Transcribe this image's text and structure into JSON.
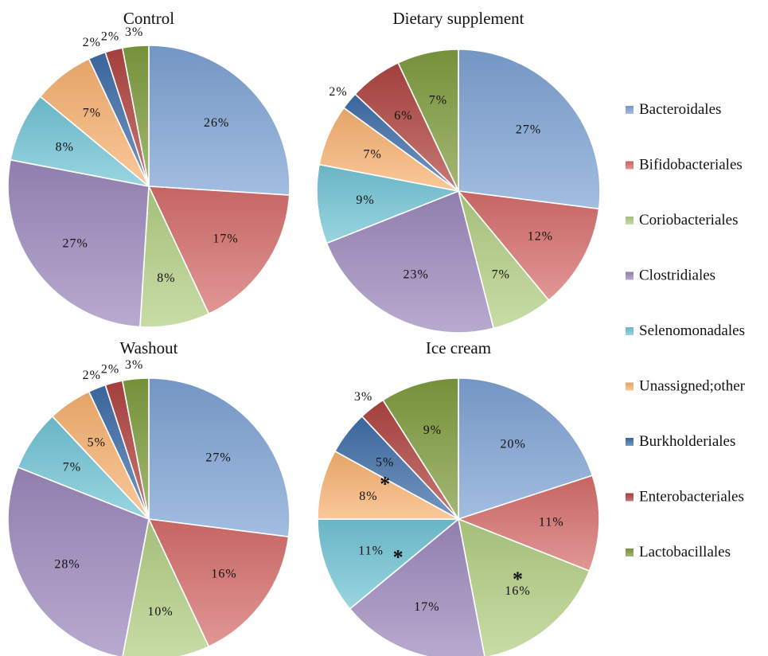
{
  "legend": [
    {
      "name": "Bacteroidales",
      "color": "#7ea3d4"
    },
    {
      "name": "Bifidobacteriales",
      "color": "#d66e6c"
    },
    {
      "name": "Coriobacteriales",
      "color": "#b3cf84"
    },
    {
      "name": "Clostridiales",
      "color": "#9d89bd"
    },
    {
      "name": "Selenomonadales",
      "color": "#72c5d6"
    },
    {
      "name": "Unassigned;other",
      "color": "#f8b271"
    },
    {
      "name": "Burkholderiales",
      "color": "#3f6ea8"
    },
    {
      "name": "Enterobacteriales",
      "color": "#b04541"
    },
    {
      "name": "Lactobacillales",
      "color": "#7f9c3e"
    }
  ],
  "chart_data": [
    {
      "type": "pie",
      "title": "Control",
      "categories": [
        "Bacteroidales",
        "Bifidobacteriales",
        "Coriobacteriales",
        "Clostridiales",
        "Selenomonadales",
        "Unassigned;other",
        "Burkholderiales",
        "Enterobacteriales",
        "Lactobacillales"
      ],
      "values": [
        26,
        17,
        8,
        27,
        8,
        7,
        2,
        2,
        3
      ],
      "labels": [
        "26%",
        "17%",
        "8%",
        "27%",
        "8%",
        "7%",
        "2%",
        "2%",
        "3%"
      ],
      "significant": []
    },
    {
      "type": "pie",
      "title": "Dietary supplement",
      "categories": [
        "Bacteroidales",
        "Bifidobacteriales",
        "Coriobacteriales",
        "Clostridiales",
        "Selenomonadales",
        "Unassigned;other",
        "Burkholderiales",
        "Enterobacteriales",
        "Lactobacillales"
      ],
      "values": [
        27,
        12,
        7,
        23,
        9,
        7,
        2,
        6,
        7
      ],
      "labels": [
        "27%",
        "12%",
        "7%",
        "23%",
        "9%",
        "7%",
        "2%",
        "6%",
        "7%"
      ],
      "significant": []
    },
    {
      "type": "pie",
      "title": "Washout",
      "categories": [
        "Bacteroidales",
        "Bifidobacteriales",
        "Coriobacteriales",
        "Clostridiales",
        "Selenomonadales",
        "Unassigned;other",
        "Burkholderiales",
        "Enterobacteriales",
        "Lactobacillales"
      ],
      "values": [
        27,
        16,
        10,
        28,
        7,
        5,
        2,
        2,
        3
      ],
      "labels": [
        "27%",
        "16%",
        "10%",
        "28%",
        "7%",
        "5%",
        "2%",
        "2%",
        "3%"
      ],
      "significant": []
    },
    {
      "type": "pie",
      "title": "Ice cream",
      "categories": [
        "Bacteroidales",
        "Bifidobacteriales",
        "Coriobacteriales",
        "Clostridiales",
        "Selenomonadales",
        "Unassigned;other",
        "Burkholderiales",
        "Enterobacteriales",
        "Lactobacillales"
      ],
      "values": [
        20,
        11,
        16,
        17,
        11,
        8,
        5,
        3,
        9
      ],
      "labels": [
        "20%",
        "11%",
        "16%",
        "17%",
        "11%",
        "8%",
        "5%",
        "3%",
        "9%"
      ],
      "significant": [
        "Coriobacteriales",
        "Selenomonadales",
        "Burkholderiales"
      ],
      "significance_marker": "*"
    }
  ]
}
